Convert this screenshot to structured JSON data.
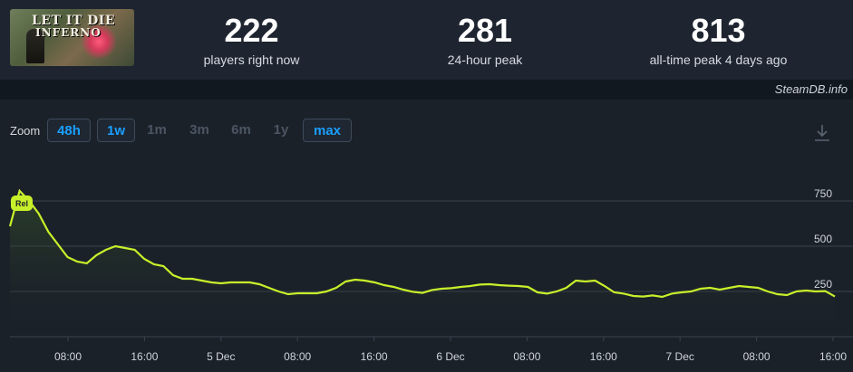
{
  "game": {
    "logo_line1": "LET IT DIE",
    "logo_line2": "INFERNO"
  },
  "stats": {
    "now": {
      "value": "222",
      "label": "players right now"
    },
    "peak_24h": {
      "value": "281",
      "label": "24-hour peak"
    },
    "all_time": {
      "value": "813",
      "label": "all-time peak 4 days ago"
    }
  },
  "credit": "SteamDB.info",
  "zoom": {
    "label": "Zoom",
    "options": [
      {
        "label": "48h",
        "state": "active"
      },
      {
        "label": "1w",
        "state": "active"
      },
      {
        "label": "1m",
        "state": "disabled"
      },
      {
        "label": "3m",
        "state": "disabled"
      },
      {
        "label": "6m",
        "state": "disabled"
      },
      {
        "label": "1y",
        "state": "disabled"
      },
      {
        "label": "max",
        "state": "active"
      }
    ]
  },
  "colors": {
    "line": "#c8f02a",
    "accent": "#1a9fff",
    "grid": "#3a4350",
    "release_badge": "#c8f02a"
  },
  "chart_data": {
    "type": "line",
    "x_ticks": [
      "08:00",
      "16:00",
      "5 Dec",
      "08:00",
      "16:00",
      "6 Dec",
      "08:00",
      "16:00",
      "7 Dec",
      "08:00",
      "16:00"
    ],
    "y_ticks": [
      "250",
      "500",
      "750"
    ],
    "ylim": [
      0,
      1000
    ],
    "annotation": "Rel",
    "series": [
      {
        "values": [
          610,
          806,
          750,
          680,
          580,
          510,
          440,
          415,
          405,
          450,
          480,
          500,
          490,
          480,
          430,
          400,
          390,
          340,
          320,
          320,
          310,
          300,
          295,
          300,
          300,
          300,
          290,
          270,
          250,
          235,
          240,
          240,
          240,
          250,
          270,
          305,
          315,
          310,
          300,
          285,
          275,
          260,
          248,
          242,
          258,
          265,
          268,
          275,
          280,
          288,
          290,
          285,
          282,
          280,
          275,
          245,
          238,
          250,
          270,
          310,
          305,
          310,
          280,
          245,
          238,
          225,
          222,
          228,
          220,
          238,
          245,
          250,
          265,
          270,
          260,
          270,
          280,
          275,
          270,
          250,
          235,
          230,
          250,
          255,
          250,
          252,
          222
        ]
      }
    ]
  }
}
